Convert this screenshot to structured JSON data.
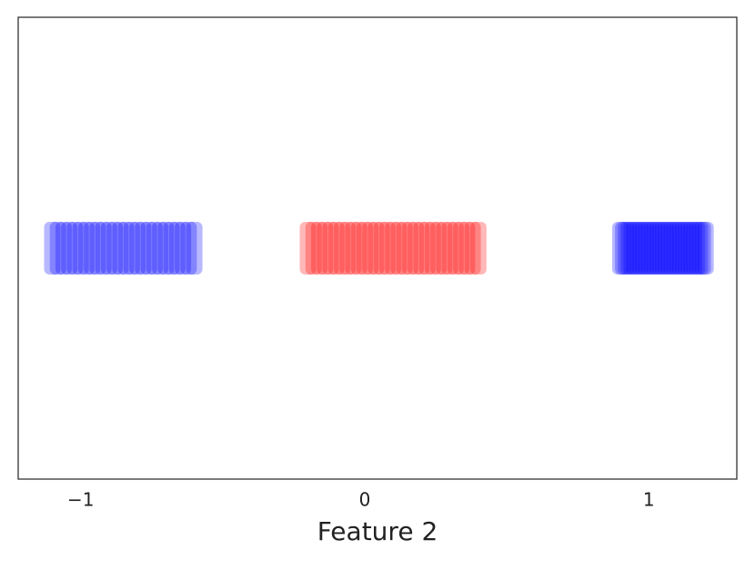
{
  "chart_data": {
    "type": "scatter",
    "xlabel": "Feature 2",
    "xlim": [
      -1.22,
      1.31
    ],
    "ylim": [
      -1,
      1
    ],
    "xticks": [
      {
        "value": -1,
        "label": "−1"
      },
      0,
      1
    ],
    "series": [
      {
        "color": "#0000ff",
        "x": [
          -1.1,
          -1.08,
          -1.06,
          -1.04,
          -1.02,
          -1.0,
          -0.98,
          -0.96,
          -0.94,
          -0.92,
          -0.9,
          -0.88,
          -0.86,
          -0.84,
          -0.82,
          -0.8,
          -0.78,
          -0.76,
          -0.74,
          -0.72,
          -0.7,
          -0.68,
          -0.66,
          -0.64,
          -0.62,
          -0.6,
          0.9,
          0.91,
          0.92,
          0.93,
          0.94,
          0.95,
          0.96,
          0.97,
          0.98,
          0.99,
          1.0,
          1.01,
          1.02,
          1.03,
          1.04,
          1.05,
          1.06,
          1.07,
          1.08,
          1.09,
          1.1,
          1.11,
          1.12,
          1.13,
          1.14,
          1.15,
          1.16,
          1.17,
          1.18,
          1.19,
          1.2
        ],
        "values": [
          0,
          0,
          0,
          0,
          0,
          0,
          0,
          0,
          0,
          0,
          0,
          0,
          0,
          0,
          0,
          0,
          0,
          0,
          0,
          0,
          0,
          0,
          0,
          0,
          0,
          0,
          0,
          0,
          0,
          0,
          0,
          0,
          0,
          0,
          0,
          0,
          0,
          0,
          0,
          0,
          0,
          0,
          0,
          0,
          0,
          0,
          0,
          0,
          0,
          0,
          0,
          0,
          0,
          0,
          0,
          0,
          0
        ]
      },
      {
        "color": "#ff0000",
        "x": [
          -0.2,
          -0.18,
          -0.16,
          -0.14,
          -0.12,
          -0.1,
          -0.08,
          -0.06,
          -0.04,
          -0.02,
          0.0,
          0.02,
          0.04,
          0.06,
          0.08,
          0.1,
          0.12,
          0.14,
          0.16,
          0.18,
          0.2,
          0.22,
          0.24,
          0.26,
          0.28,
          0.3,
          0.32,
          0.34,
          0.36,
          0.38,
          0.4
        ],
        "values": [
          0,
          0,
          0,
          0,
          0,
          0,
          0,
          0,
          0,
          0,
          0,
          0,
          0,
          0,
          0,
          0,
          0,
          0,
          0,
          0,
          0,
          0,
          0,
          0,
          0,
          0,
          0,
          0,
          0,
          0,
          0
        ]
      }
    ]
  }
}
